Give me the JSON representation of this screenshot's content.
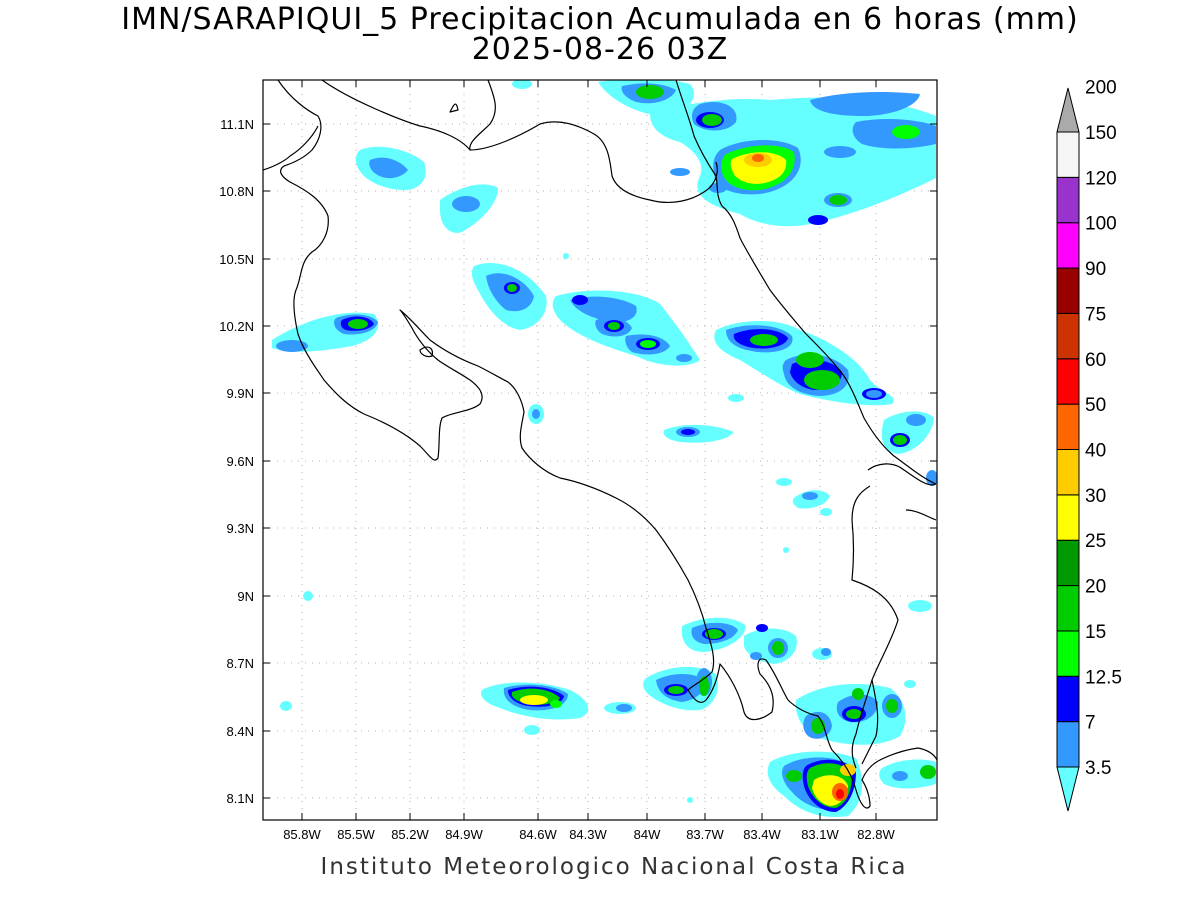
{
  "title_line1": "IMN/SARAPIQUI_5 Precipitacion Acumulada en 6 horas (mm)",
  "title_line2": "2025-08-26 03Z",
  "credit": "Instituto Meteorologico Nacional Costa Rica",
  "lat_labels": [
    "11.1N",
    "10.8N",
    "10.5N",
    "10.2N",
    "9.9N",
    "9.6N",
    "9.3N",
    "9N",
    "8.7N",
    "8.4N",
    "8.1N"
  ],
  "lon_labels": [
    "85.8W",
    "85.5W",
    "85.2W",
    "84.9W",
    "84.6W",
    "84.3W",
    "84W",
    "83.7W",
    "83.4W",
    "83.1W",
    "82.8W"
  ],
  "colorbar": {
    "levels": [
      "3.5",
      "7",
      "12.5",
      "15",
      "20",
      "25",
      "30",
      "40",
      "50",
      "60",
      "75",
      "90",
      "100",
      "120",
      "150",
      "200"
    ],
    "colors": [
      "#66ffff",
      "#3399ff",
      "#0000ff",
      "#00ff00",
      "#00cc00",
      "#009900",
      "#ffff00",
      "#ffcc00",
      "#ff6600",
      "#ff0000",
      "#cc3300",
      "#990000",
      "#ff00ff",
      "#9933cc",
      "#f5f5f5",
      "#aaaaaa"
    ]
  }
}
